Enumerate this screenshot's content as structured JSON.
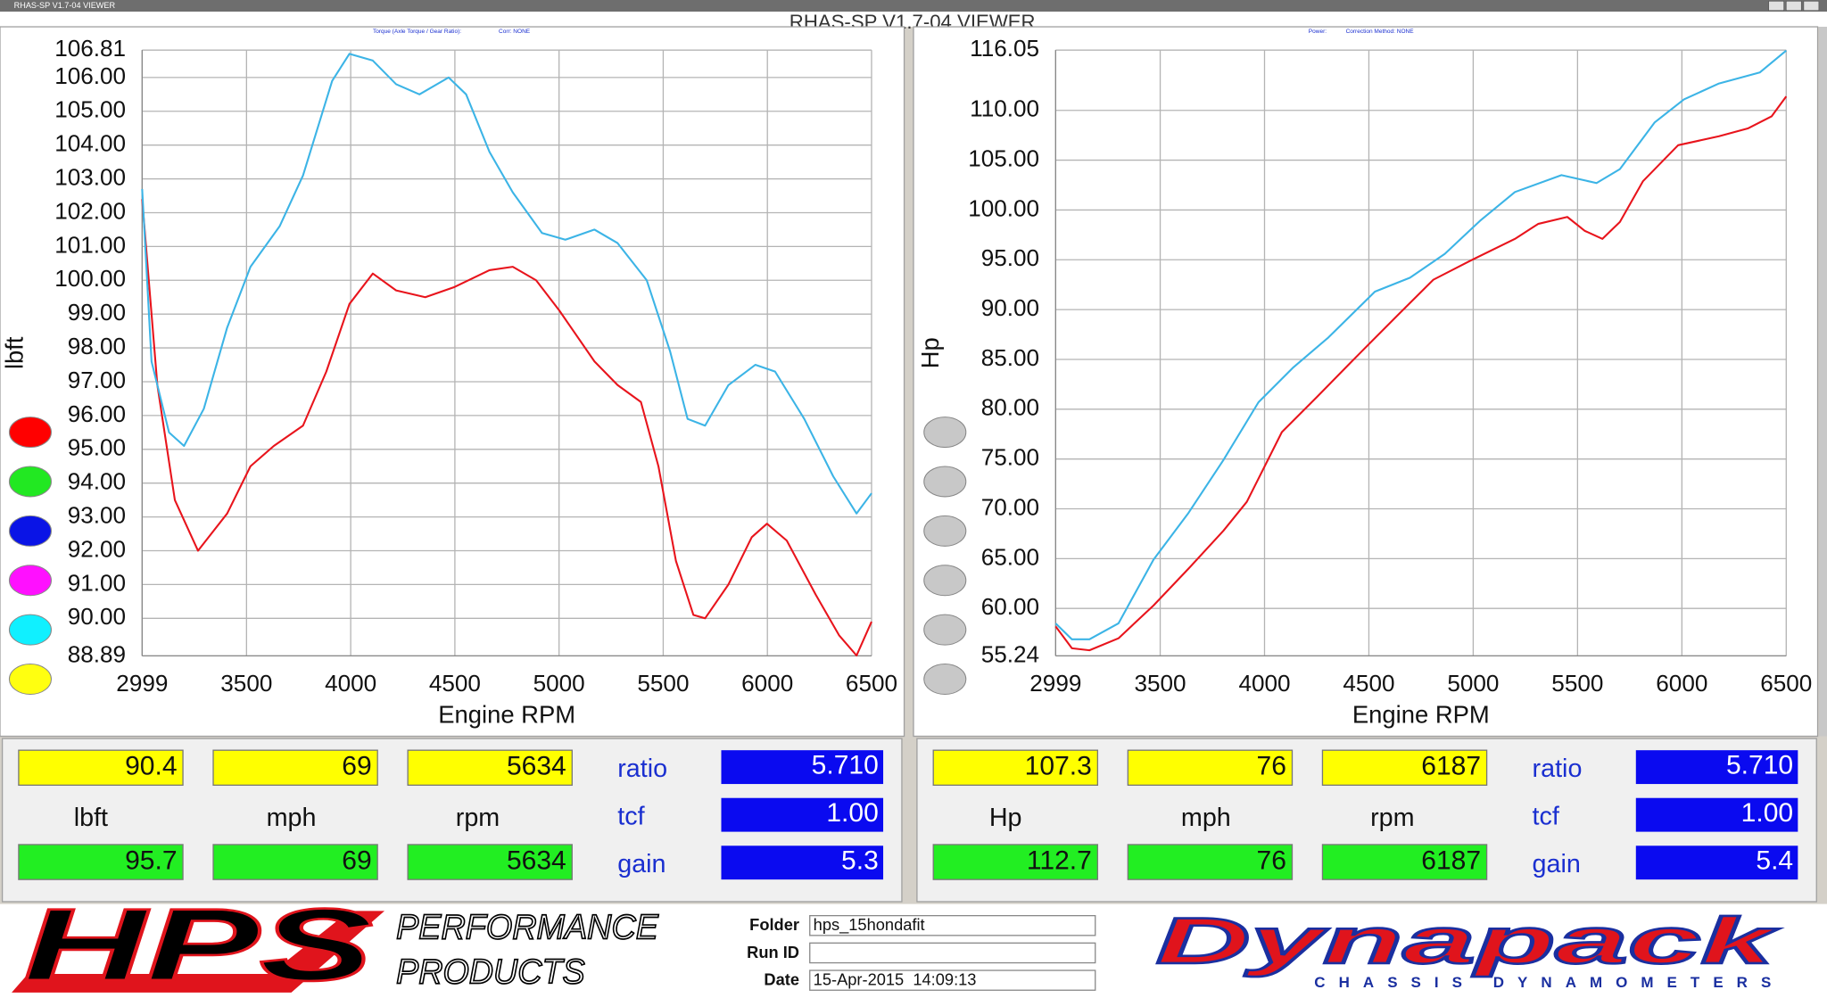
{
  "window": {
    "title": "RHAS-SP V1.7-04 VIEWER",
    "heading": "RHAS-SP V1.7-04 VIEWER"
  },
  "chart_data": [
    {
      "type": "line",
      "header_labels": [
        "Torque (Axle Torque / Gear Ratio):",
        "Corr: NONE"
      ],
      "x_label": "Engine RPM",
      "y_label": "lbft",
      "xlim": [
        2999,
        6500
      ],
      "xticks": [
        2999,
        3500,
        4000,
        4500,
        5000,
        5500,
        6000,
        6500
      ],
      "ylim": [
        88.89,
        106.81
      ],
      "yticks": [
        {
          "value": 88.89,
          "label": "88.89"
        },
        {
          "value": 90,
          "label": "90.00"
        },
        {
          "value": 91,
          "label": "91.00"
        },
        {
          "value": 92,
          "label": "92.00"
        },
        {
          "value": 93,
          "label": "93.00"
        },
        {
          "value": 94,
          "label": "94.00"
        },
        {
          "value": 95,
          "label": "95.00"
        },
        {
          "value": 96,
          "label": "96.00"
        },
        {
          "value": 97,
          "label": "97.00"
        },
        {
          "value": 98,
          "label": "98.00"
        },
        {
          "value": 99,
          "label": "99.00"
        },
        {
          "value": 100,
          "label": "100.00"
        },
        {
          "value": 101,
          "label": "101.00"
        },
        {
          "value": 102,
          "label": "102.00"
        },
        {
          "value": 103,
          "label": "103.00"
        },
        {
          "value": 104,
          "label": "104.00"
        },
        {
          "value": 105,
          "label": "105.00"
        },
        {
          "value": 106,
          "label": "106.00"
        },
        {
          "value": 106.81,
          "label": "106.81"
        }
      ],
      "grid": true,
      "run_colors": [
        "#ff0000",
        "#22e822",
        "#0a14e6",
        "#ff10ff",
        "#10f0ff",
        "#ffff10"
      ],
      "series": [
        {
          "color": "#e8141c",
          "x": [
            2999,
            3072,
            3156,
            3267,
            3407,
            3519,
            3631,
            3771,
            3883,
            3994,
            4106,
            4218,
            4358,
            4498,
            4666,
            4778,
            4890,
            5002,
            5170,
            5281,
            5393,
            5477,
            5561,
            5645,
            5701,
            5813,
            5925,
            5998,
            6093,
            6232,
            6344,
            6428,
            6500
          ],
          "values": [
            102.4,
            96.9,
            93.5,
            92.0,
            93.1,
            94.5,
            95.1,
            95.7,
            97.3,
            99.3,
            100.2,
            99.7,
            99.5,
            99.8,
            100.3,
            100.4,
            100.0,
            99.1,
            97.6,
            96.9,
            96.4,
            94.5,
            91.7,
            90.1,
            90.0,
            91.0,
            92.4,
            92.8,
            92.3,
            90.7,
            89.5,
            88.9,
            89.9
          ]
        },
        {
          "color": "#3cb4e6",
          "x": [
            2999,
            3044,
            3128,
            3200,
            3295,
            3407,
            3519,
            3659,
            3771,
            3911,
            3994,
            4106,
            4218,
            4330,
            4470,
            4554,
            4666,
            4778,
            4918,
            5030,
            5170,
            5281,
            5421,
            5533,
            5617,
            5701,
            5813,
            5942,
            6037,
            6177,
            6316,
            6428,
            6500
          ],
          "values": [
            102.7,
            97.6,
            95.5,
            95.1,
            96.2,
            98.6,
            100.4,
            101.6,
            103.1,
            105.9,
            106.7,
            106.5,
            105.8,
            105.5,
            106.0,
            105.5,
            103.8,
            102.6,
            101.4,
            101.2,
            101.5,
            101.1,
            100.0,
            97.9,
            95.9,
            95.7,
            96.9,
            97.5,
            97.3,
            95.9,
            94.2,
            93.1,
            93.7
          ]
        }
      ]
    },
    {
      "type": "line",
      "header_labels": [
        "Power:",
        "Correction Method: NONE"
      ],
      "x_label": "Engine RPM",
      "y_label": "Hp",
      "xlim": [
        2999,
        6500
      ],
      "xticks": [
        2999,
        3500,
        4000,
        4500,
        5000,
        5500,
        6000,
        6500
      ],
      "ylim": [
        55.24,
        116.05
      ],
      "yticks": [
        {
          "value": 55.24,
          "label": "55.24"
        },
        {
          "value": 60,
          "label": "60.00"
        },
        {
          "value": 65,
          "label": "65.00"
        },
        {
          "value": 70,
          "label": "70.00"
        },
        {
          "value": 75,
          "label": "75.00"
        },
        {
          "value": 80,
          "label": "80.00"
        },
        {
          "value": 85,
          "label": "85.00"
        },
        {
          "value": 90,
          "label": "90.00"
        },
        {
          "value": 95,
          "label": "95.00"
        },
        {
          "value": 100,
          "label": "100.00"
        },
        {
          "value": 105,
          "label": "105.00"
        },
        {
          "value": 110,
          "label": "110.00"
        },
        {
          "value": 116.05,
          "label": "116.05"
        }
      ],
      "grid": true,
      "run_colors": [
        "#c8c8c8",
        "#c8c8c8",
        "#c8c8c8",
        "#c8c8c8",
        "#c8c8c8",
        "#c8c8c8"
      ],
      "series": [
        {
          "color": "#e8141c",
          "x": [
            2999,
            3077,
            3161,
            3300,
            3468,
            3636,
            3803,
            3915,
            4083,
            4250,
            4418,
            4641,
            4809,
            4976,
            5200,
            5311,
            5451,
            5535,
            5619,
            5703,
            5814,
            5982,
            6178,
            6318,
            6430,
            6500
          ],
          "values": [
            58.2,
            56.0,
            55.8,
            57.0,
            60.3,
            64.0,
            67.8,
            70.7,
            77.7,
            81.2,
            84.8,
            89.5,
            93.0,
            94.8,
            97.1,
            98.6,
            99.3,
            97.9,
            97.1,
            98.8,
            102.9,
            106.5,
            107.4,
            108.2,
            109.4,
            111.4
          ]
        },
        {
          "color": "#3cb4e6",
          "x": [
            2999,
            3077,
            3161,
            3300,
            3468,
            3636,
            3803,
            3971,
            4138,
            4306,
            4529,
            4697,
            4864,
            5032,
            5200,
            5423,
            5591,
            5703,
            5870,
            6010,
            6178,
            6373,
            6500
          ],
          "values": [
            58.5,
            56.9,
            56.9,
            58.5,
            64.9,
            69.6,
            74.9,
            80.7,
            84.2,
            87.2,
            91.8,
            93.2,
            95.6,
            98.9,
            101.8,
            103.5,
            102.7,
            104.1,
            108.8,
            111.1,
            112.7,
            113.8,
            116.0
          ]
        }
      ]
    }
  ],
  "readouts": [
    {
      "primary": [
        "90.4",
        "69",
        "5634"
      ],
      "units": [
        "lbft",
        "mph",
        "rpm"
      ],
      "secondary": [
        "95.7",
        "69",
        "5634"
      ],
      "params": [
        {
          "label": "ratio",
          "value": "5.710"
        },
        {
          "label": "tcf",
          "value": "1.00"
        },
        {
          "label": "gain",
          "value": "5.3"
        }
      ]
    },
    {
      "primary": [
        "107.3",
        "76",
        "6187"
      ],
      "units": [
        "Hp",
        "mph",
        "rpm"
      ],
      "secondary": [
        "112.7",
        "76",
        "6187"
      ],
      "params": [
        {
          "label": "ratio",
          "value": "5.710"
        },
        {
          "label": "tcf",
          "value": "1.00"
        },
        {
          "label": "gain",
          "value": "5.4"
        }
      ]
    }
  ],
  "footer": {
    "brand": "HPS",
    "brand_lines": [
      "PERFORMANCE",
      "PRODUCTS"
    ],
    "fields": [
      {
        "label": "Folder",
        "value": "hps_15hondafit"
      },
      {
        "label": "Run ID"
      },
      {
        "label": "Date",
        "value": "15-Apr-2015  14:09:13"
      }
    ],
    "maker": "Dynapack",
    "maker_tagline": "CHASSIS DYNAMOMETERS"
  }
}
